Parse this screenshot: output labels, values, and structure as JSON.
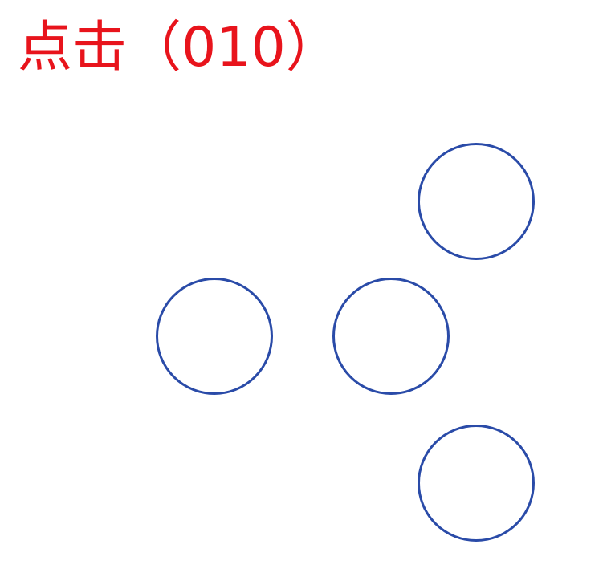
{
  "instruction": {
    "text": "点击（010）",
    "color": "#e8141c"
  },
  "targets": {
    "stroke_color": "#2a4ba8",
    "fill_color": "#ffffff",
    "count": 4
  }
}
